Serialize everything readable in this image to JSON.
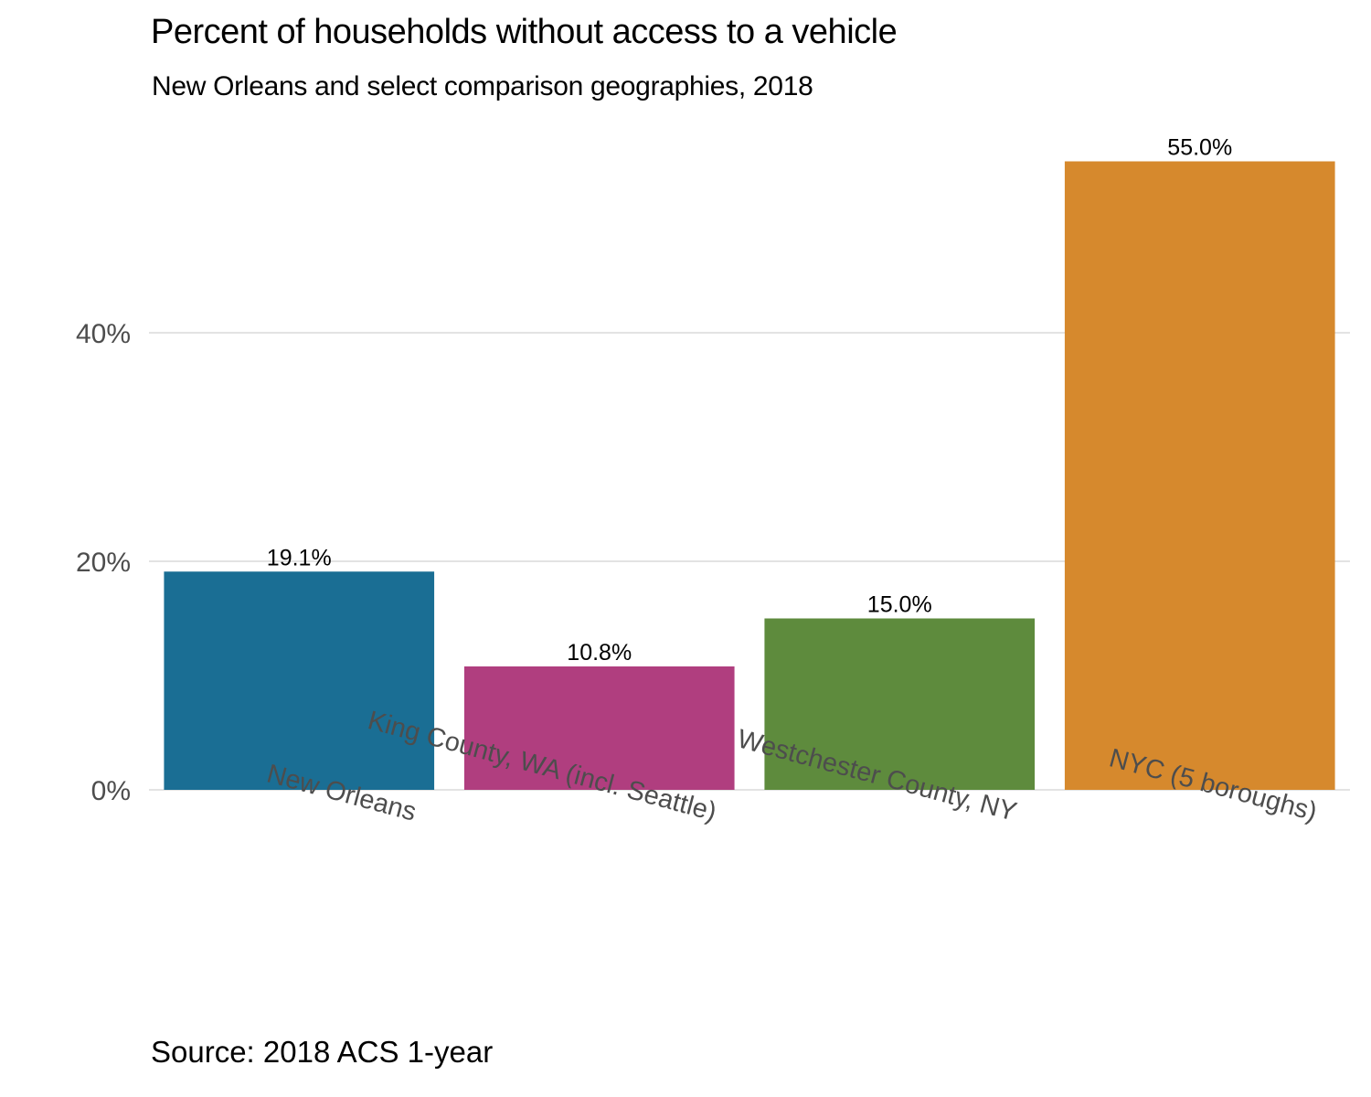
{
  "chart_data": {
    "type": "bar",
    "title": "Percent of households without access to a vehicle",
    "subtitle": "New Orleans and select comparison geographies, 2018",
    "caption": "Source: 2018 ACS 1-year",
    "xlabel": "",
    "ylabel": "",
    "categories": [
      "New Orleans",
      "King County, WA (incl. Seattle)",
      "Westchester County, NY",
      "NYC (5 boroughs)"
    ],
    "values": [
      19.1,
      10.8,
      15.0,
      55.0
    ],
    "data_labels": [
      "19.1%",
      "10.8%",
      "15.0%",
      "55.0%"
    ],
    "colors": [
      "#1a6e94",
      "#b03e7f",
      "#5e8b3d",
      "#d6892d"
    ],
    "ylim": [
      0,
      55
    ],
    "yticks": [
      0,
      20,
      40
    ],
    "ytick_labels": [
      "0%",
      "20%",
      "40%"
    ],
    "grid": true,
    "legend": "none"
  }
}
